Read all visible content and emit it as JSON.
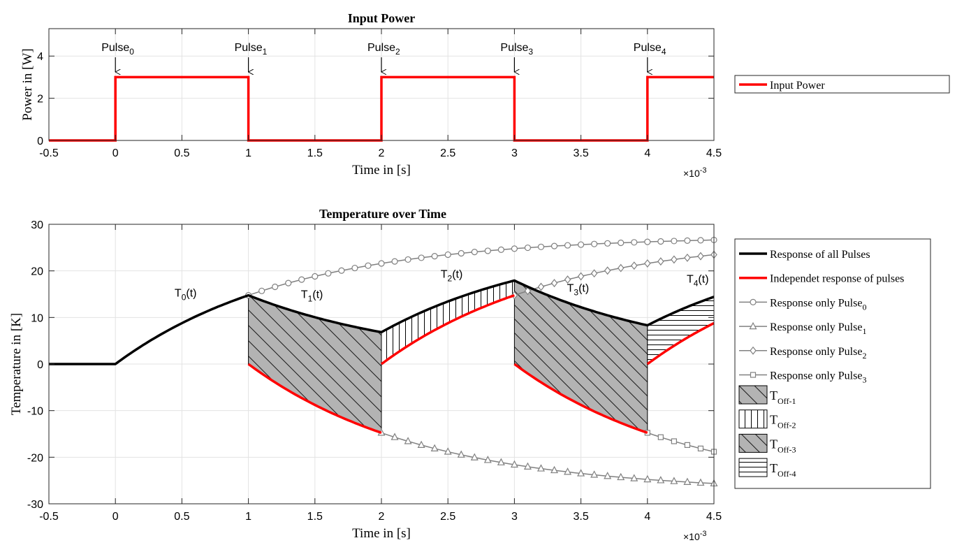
{
  "chart_data": [
    {
      "type": "line",
      "title": "Input Power",
      "xlabel": "Time in [s]",
      "ylabel": "Power in [W]",
      "x_exponent_label": "×10",
      "x_exponent": "-3",
      "xlim": [
        -0.5,
        4.5
      ],
      "ylim": [
        0,
        5.3
      ],
      "xticks": [
        "-0.5",
        "0",
        "0.5",
        "1",
        "1.5",
        "2",
        "2.5",
        "3",
        "3.5",
        "4",
        "4.5"
      ],
      "xtick_values": [
        -0.5,
        0,
        0.5,
        1,
        1.5,
        2,
        2.5,
        3,
        3.5,
        4,
        4.5
      ],
      "yticks": [
        "0",
        "2",
        "4"
      ],
      "ytick_values": [
        0,
        2,
        4
      ],
      "grid": true,
      "legend_position": "right",
      "series": [
        {
          "name": "Input Power",
          "color": "#ff0000",
          "x": [
            -0.5,
            0,
            0,
            1,
            1,
            2,
            2,
            3,
            3,
            4,
            4,
            4.5
          ],
          "y": [
            0,
            0,
            3,
            3,
            0,
            0,
            3,
            3,
            0,
            0,
            3,
            3
          ]
        }
      ],
      "annotations": [
        {
          "base": "Pulse",
          "sub": "0",
          "x": 0
        },
        {
          "base": "Pulse",
          "sub": "1",
          "x": 1
        },
        {
          "base": "Pulse",
          "sub": "2",
          "x": 2
        },
        {
          "base": "Pulse",
          "sub": "3",
          "x": 3
        },
        {
          "base": "Pulse",
          "sub": "4",
          "x": 4
        }
      ]
    },
    {
      "type": "line",
      "title": "Temperature over Time",
      "xlabel": "Time in [s]",
      "ylabel": "Temperature in [K]",
      "x_exponent_label": "×10",
      "x_exponent": "-3",
      "xlim": [
        -0.5,
        4.5
      ],
      "ylim": [
        -30,
        30
      ],
      "xticks": [
        "-0.5",
        "0",
        "0.5",
        "1",
        "1.5",
        "2",
        "2.5",
        "3",
        "3.5",
        "4",
        "4.5"
      ],
      "xtick_values": [
        -0.5,
        0,
        0.5,
        1,
        1.5,
        2,
        2.5,
        3,
        3.5,
        4,
        4.5
      ],
      "yticks": [
        "-30",
        "-20",
        "-10",
        "0",
        "10",
        "20",
        "30"
      ],
      "ytick_values": [
        -30,
        -20,
        -10,
        0,
        10,
        20,
        30
      ],
      "grid": true,
      "legend_position": "right",
      "model": {
        "amplitude": 27.5,
        "time_constant": 1.3
      },
      "curve_labels": [
        {
          "base": "T",
          "sub": "0",
          "suffix": "(t)",
          "x": 0.55,
          "y": 14.5
        },
        {
          "base": "T",
          "sub": "1",
          "suffix": "(t)",
          "x": 1.5,
          "y": 14.2
        },
        {
          "base": "T",
          "sub": "2",
          "suffix": "(t)",
          "x": 2.55,
          "y": 18.5
        },
        {
          "base": "T",
          "sub": "3",
          "suffix": "(t)",
          "x": 3.5,
          "y": 15.5
        },
        {
          "base": "T",
          "sub": "4",
          "suffix": "(t)",
          "x": 4.4,
          "y": 17.5
        }
      ],
      "series": [
        {
          "name": "Response of all Pulses",
          "color": "#000000",
          "kind": "total"
        },
        {
          "name": "Independet response of pulses",
          "color": "#ff0000",
          "kind": "independent"
        },
        {
          "name": "Response only Pulse",
          "sub": "0",
          "color": "#808080",
          "marker": "circle",
          "sign": 1,
          "start": 0,
          "draw_from": 1
        },
        {
          "name": "Response only Pulse",
          "sub": "1",
          "color": "#808080",
          "marker": "triangle",
          "sign": -1,
          "start": 1,
          "draw_from": 2
        },
        {
          "name": "Response only Pulse",
          "sub": "2",
          "color": "#808080",
          "marker": "diamond",
          "sign": 1,
          "start": 2,
          "draw_from": 3
        },
        {
          "name": "Response only Pulse",
          "sub": "3",
          "color": "#808080",
          "marker": "square",
          "sign": -1,
          "start": 3,
          "draw_from": 4
        }
      ],
      "regions": [
        {
          "name": "T",
          "sub": "Off-1",
          "from": 1,
          "to": 2,
          "hatch": "diag-down"
        },
        {
          "name": "T",
          "sub": "Off-2",
          "from": 2,
          "to": 3,
          "hatch": "vertical"
        },
        {
          "name": "T",
          "sub": "Off-3",
          "from": 3,
          "to": 4,
          "hatch": "diag-down-dense"
        },
        {
          "name": "T",
          "sub": "Off-4",
          "from": 4,
          "to": 4.5,
          "hatch": "horizontal"
        }
      ]
    }
  ]
}
